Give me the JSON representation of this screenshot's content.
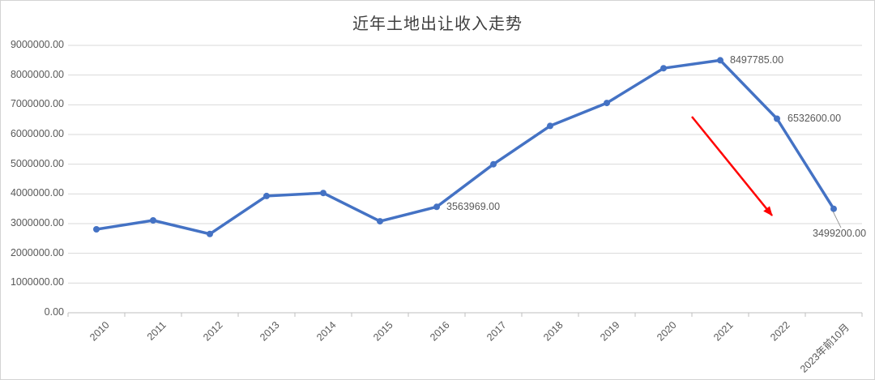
{
  "window": {
    "background": "#ffffff",
    "border_color": "#d3d3d3"
  },
  "chart_data": {
    "type": "line",
    "title": "近年土地出让收入走势",
    "categories": [
      "2010",
      "2011",
      "2012",
      "2013",
      "2014",
      "2015",
      "2016",
      "2017",
      "2018",
      "2019",
      "2020",
      "2021",
      "2022",
      "2023年前10月"
    ],
    "values": [
      2810000,
      3110000,
      2650000,
      3930000,
      4030000,
      3080000,
      3563969,
      5000000,
      6290000,
      7060000,
      8230000,
      8497785,
      6532600,
      3499200
    ],
    "ylim": [
      0,
      9000000
    ],
    "ytick_step": 1000000,
    "ytick_labels": [
      "0.00",
      "1000000.00",
      "2000000.00",
      "3000000.00",
      "4000000.00",
      "5000000.00",
      "6000000.00",
      "7000000.00",
      "8000000.00",
      "9000000.00"
    ],
    "grid": "horizontal",
    "legend": "none",
    "marker": "circle",
    "data_labels": [
      {
        "category": "2016",
        "index": 6,
        "text": "3563969.00",
        "placement": "right"
      },
      {
        "category": "2021",
        "index": 11,
        "text": "8497785.00",
        "placement": "right"
      },
      {
        "category": "2022",
        "index": 12,
        "text": "6532600.00",
        "placement": "right"
      },
      {
        "category": "2023年前10月",
        "index": 13,
        "text": "3499200.00",
        "placement": "below-right",
        "leader_line": true
      }
    ],
    "annotation": {
      "type": "arrow",
      "direction": "down-right",
      "color": "#FF0000"
    },
    "colors": {
      "line": "#4472C4",
      "marker": "#4472C4",
      "gridline": "#D9D9D9",
      "axis_line": "#BFBFBF",
      "axis_label": "#595959",
      "data_label": "#595959",
      "title": "#3F3F3F",
      "leader_line": "#808080"
    }
  }
}
